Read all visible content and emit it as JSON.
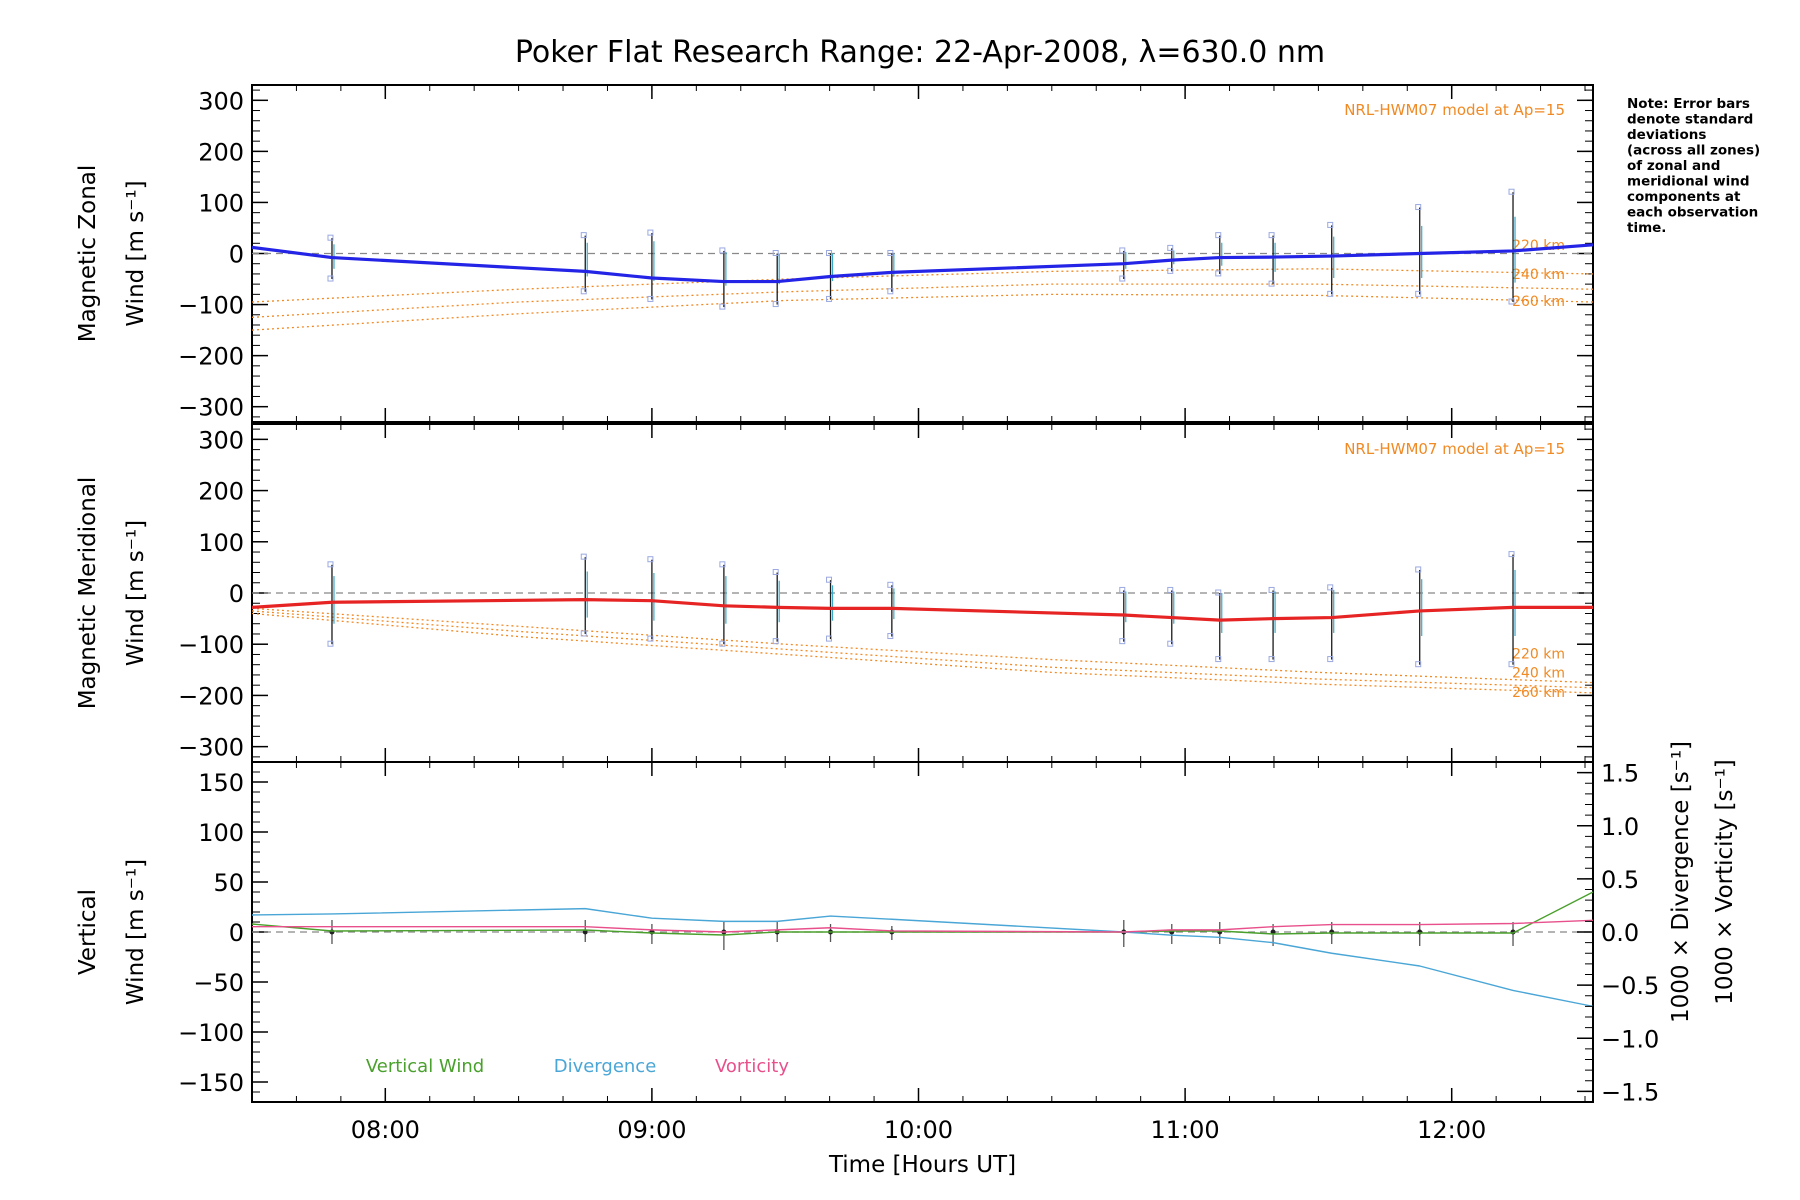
{
  "chart_data": [
    {
      "type": "line",
      "panel": "zonal",
      "title": "Poker Flat Research Range: 22-Apr-2008, λ=630.0 nm",
      "ylabel_line1": "Magnetic Zonal",
      "ylabel_line2": "Wind [m s⁻¹]",
      "ylim": [
        -330,
        330
      ],
      "yticks": [
        -300,
        -200,
        -100,
        0,
        100,
        200,
        300
      ],
      "ytick_labels": [
        "−300",
        "−200",
        "−100",
        "0",
        "100",
        "200",
        "300"
      ],
      "model_label": "NRL-HWM07 model at Ap=15",
      "model_curve_labels": [
        "220 km",
        "240 km",
        "260 km"
      ],
      "series": [
        {
          "color": "#2424e6",
          "x": [
            7.5,
            7.8,
            8.75,
            9.0,
            9.27,
            9.47,
            9.67,
            9.9,
            10.77,
            10.95,
            11.13,
            11.33,
            11.55,
            11.88,
            12.23,
            12.53
          ],
          "y": [
            12,
            -8,
            -35,
            -48,
            -55,
            -55,
            -45,
            -37,
            -20,
            -13,
            -8,
            -7,
            -5,
            0,
            5,
            17
          ]
        }
      ],
      "error_bars": {
        "x": [
          7.8,
          8.75,
          9.0,
          9.27,
          9.47,
          9.67,
          9.9,
          10.77,
          10.95,
          11.13,
          11.33,
          11.55,
          11.88,
          12.23
        ],
        "low": [
          -50,
          -75,
          -90,
          -105,
          -100,
          -90,
          -75,
          -50,
          -35,
          -40,
          -60,
          -80,
          -80,
          -95
        ],
        "high": [
          30,
          35,
          40,
          5,
          0,
          0,
          0,
          5,
          10,
          35,
          35,
          55,
          90,
          120
        ]
      },
      "model_curves": [
        {
          "name": "220 km",
          "x": [
            7.5,
            8.5,
            9.5,
            10.5,
            11.5,
            12.53
          ],
          "y": [
            -95,
            -70,
            -50,
            -35,
            -30,
            -40
          ]
        },
        {
          "name": "240 km",
          "x": [
            7.5,
            8.5,
            9.5,
            10.5,
            11.5,
            12.53
          ],
          "y": [
            -125,
            -95,
            -75,
            -60,
            -60,
            -70
          ]
        },
        {
          "name": "260 km",
          "x": [
            7.5,
            8.5,
            9.5,
            10.5,
            11.5,
            12.53
          ],
          "y": [
            -150,
            -118,
            -92,
            -80,
            -82,
            -95
          ]
        }
      ]
    },
    {
      "type": "line",
      "panel": "meridional",
      "ylabel_line1": "Magnetic Meridional",
      "ylabel_line2": "Wind [m s⁻¹]",
      "ylim": [
        -330,
        330
      ],
      "yticks": [
        -300,
        -200,
        -100,
        0,
        100,
        200,
        300
      ],
      "ytick_labels": [
        "−300",
        "−200",
        "−100",
        "0",
        "100",
        "200",
        "300"
      ],
      "model_label": "NRL-HWM07 model at Ap=15",
      "model_curve_labels": [
        "220 km",
        "240 km",
        "260 km"
      ],
      "series": [
        {
          "color": "#e62424",
          "x": [
            7.5,
            7.8,
            8.75,
            9.0,
            9.27,
            9.47,
            9.67,
            9.9,
            10.77,
            10.95,
            11.13,
            11.33,
            11.55,
            11.88,
            12.23,
            12.53
          ],
          "y": [
            -28,
            -18,
            -13,
            -15,
            -25,
            -28,
            -30,
            -30,
            -43,
            -48,
            -53,
            -50,
            -48,
            -35,
            -28,
            -28
          ]
        }
      ],
      "error_bars": {
        "x": [
          7.8,
          8.75,
          9.0,
          9.27,
          9.47,
          9.67,
          9.9,
          10.77,
          10.95,
          11.13,
          11.33,
          11.55,
          11.88,
          12.23
        ],
        "low": [
          -100,
          -80,
          -90,
          -100,
          -95,
          -90,
          -85,
          -95,
          -100,
          -130,
          -130,
          -130,
          -140,
          -140
        ],
        "high": [
          55,
          70,
          65,
          55,
          40,
          25,
          15,
          5,
          5,
          0,
          5,
          10,
          45,
          75
        ]
      },
      "model_curves": [
        {
          "name": "220 km",
          "x": [
            7.5,
            8.5,
            9.5,
            10.5,
            11.5,
            12.53
          ],
          "y": [
            -30,
            -65,
            -100,
            -130,
            -155,
            -175
          ]
        },
        {
          "name": "240 km",
          "x": [
            7.5,
            8.5,
            9.5,
            10.5,
            11.5,
            12.53
          ],
          "y": [
            -35,
            -75,
            -110,
            -145,
            -168,
            -185
          ]
        },
        {
          "name": "260 km",
          "x": [
            7.5,
            8.5,
            9.5,
            10.5,
            11.5,
            12.53
          ],
          "y": [
            -40,
            -85,
            -120,
            -155,
            -178,
            -195
          ]
        }
      ]
    },
    {
      "type": "line",
      "panel": "vertical",
      "xlabel": "Time [Hours UT]",
      "xlim": [
        7.5,
        12.53
      ],
      "xticks": [
        8,
        9,
        10,
        11,
        12
      ],
      "xtick_labels": [
        "08:00",
        "09:00",
        "10:00",
        "11:00",
        "12:00"
      ],
      "ylabel_line1": "Vertical",
      "ylabel_line2": "Wind [m s⁻¹]",
      "ylim": [
        -170,
        170
      ],
      "yticks": [
        -150,
        -100,
        -50,
        0,
        50,
        100,
        150
      ],
      "ytick_labels": [
        "−150",
        "−100",
        "−50",
        "0",
        "50",
        "100",
        "150"
      ],
      "y2lim": [
        -1.6,
        1.6
      ],
      "y2ticks": [
        -1.5,
        -1.0,
        -0.5,
        0.0,
        0.5,
        1.0,
        1.5
      ],
      "y2tick_labels": [
        "−1.5",
        "−1.0",
        "−0.5",
        "0.0",
        "0.5",
        "1.0",
        "1.5"
      ],
      "y2label_divergence": "1000 × Divergence [s⁻¹]",
      "y2label_vorticity": "1000 × Vorticity [s⁻¹]",
      "legend": [
        "Vertical Wind",
        "Divergence",
        "Vorticity"
      ],
      "series": [
        {
          "name": "Vertical Wind",
          "color": "#4aa02c",
          "axis": "left",
          "x": [
            7.5,
            7.8,
            8.75,
            9.0,
            9.27,
            9.47,
            9.67,
            9.9,
            10.77,
            10.95,
            11.13,
            11.33,
            11.55,
            11.88,
            12.23,
            12.53
          ],
          "y": [
            8,
            1,
            2,
            -1,
            -3,
            0,
            0,
            0,
            0,
            1,
            1,
            -2,
            -1,
            -1,
            -1,
            40
          ]
        },
        {
          "name": "Divergence",
          "color": "#4aa6d6",
          "axis": "right",
          "x": [
            7.5,
            7.8,
            8.75,
            9.0,
            9.27,
            9.47,
            9.67,
            9.9,
            10.77,
            10.95,
            11.13,
            11.33,
            11.55,
            11.88,
            12.23,
            12.53
          ],
          "y": [
            0.16,
            0.17,
            0.22,
            0.13,
            0.1,
            0.1,
            0.15,
            0.12,
            0.0,
            -0.03,
            -0.05,
            -0.1,
            -0.2,
            -0.32,
            -0.55,
            -0.7
          ]
        },
        {
          "name": "Vorticity",
          "color": "#e8508c",
          "axis": "right",
          "x": [
            7.5,
            7.8,
            8.75,
            9.0,
            9.27,
            9.47,
            9.67,
            9.9,
            10.77,
            10.95,
            11.13,
            11.33,
            11.55,
            11.88,
            12.23,
            12.53
          ],
          "y": [
            0.05,
            0.05,
            0.05,
            0.02,
            0.0,
            0.02,
            0.04,
            0.01,
            0.0,
            0.02,
            0.02,
            0.05,
            0.07,
            0.07,
            0.08,
            0.11
          ]
        }
      ],
      "error_bars": {
        "x": [
          7.8,
          8.75,
          9.0,
          9.27,
          9.47,
          9.67,
          9.9,
          10.77,
          10.95,
          11.13,
          11.33,
          11.55,
          11.88,
          12.23
        ],
        "low": [
          -12,
          -10,
          -12,
          -18,
          -10,
          -10,
          -8,
          -15,
          -12,
          -12,
          -14,
          -12,
          -14,
          -14
        ],
        "high": [
          12,
          12,
          8,
          10,
          10,
          8,
          6,
          12,
          8,
          10,
          8,
          10,
          10,
          10
        ]
      }
    }
  ],
  "note_lines": [
    "Note: Error bars",
    "denote standard",
    "deviations",
    "(across all zones)",
    "of zonal and",
    "meridional wind",
    "components at",
    "each observation",
    "time."
  ],
  "colors": {
    "zonal_line": "#2424e6",
    "meridional_line": "#e62424",
    "model": "#f08a24",
    "vertical_wind": "#4aa02c",
    "divergence": "#4aa6d6",
    "vorticity": "#e8508c",
    "zero_line": "#888888"
  }
}
